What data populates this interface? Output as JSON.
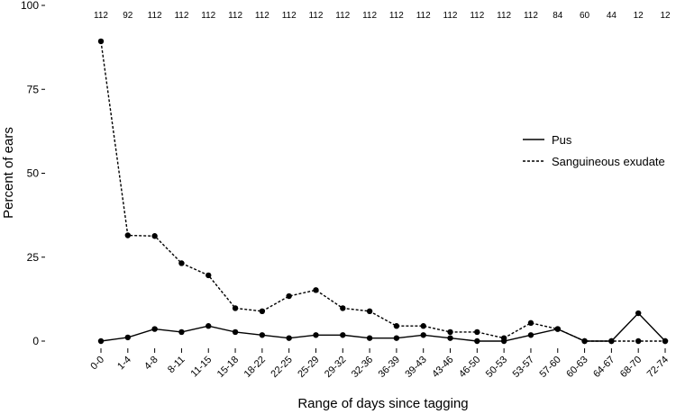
{
  "chart_data": {
    "type": "line",
    "title": "",
    "xlabel": "Range of days since tagging",
    "ylabel": "Percent of ears",
    "ylim": [
      0,
      100
    ],
    "yticks": [
      0,
      25,
      50,
      75,
      100
    ],
    "grid": false,
    "legend_position": "right",
    "categories": [
      "0-0",
      "1-4",
      "4-8",
      "8-11",
      "11-15",
      "15-18",
      "18-22",
      "22-25",
      "25-29",
      "29-32",
      "32-36",
      "36-39",
      "39-43",
      "43-46",
      "46-50",
      "50-53",
      "53-57",
      "57-60",
      "60-63",
      "64-67",
      "68-70",
      "72-74"
    ],
    "counts": [
      "112",
      "92",
      "112",
      "112",
      "112",
      "112",
      "112",
      "112",
      "112",
      "112",
      "112",
      "112",
      "112",
      "112",
      "112",
      "112",
      "112",
      "84",
      "60",
      "44",
      "12",
      "12"
    ],
    "series": [
      {
        "name": "Pus",
        "style": "solid",
        "values": [
          0,
          1.1,
          3.6,
          2.7,
          4.5,
          2.7,
          1.8,
          0.9,
          1.8,
          1.8,
          0.9,
          0.9,
          1.8,
          0.9,
          0,
          0,
          1.8,
          3.6,
          0,
          0,
          8.3,
          0
        ]
      },
      {
        "name": "Sanguineous exudate",
        "style": "dashed",
        "values": [
          89.3,
          31.5,
          31.3,
          23.2,
          19.6,
          9.8,
          8.9,
          13.4,
          15.2,
          9.8,
          8.9,
          4.5,
          4.5,
          2.7,
          2.7,
          0.9,
          5.4,
          3.6,
          0,
          0,
          0,
          0
        ]
      }
    ]
  }
}
